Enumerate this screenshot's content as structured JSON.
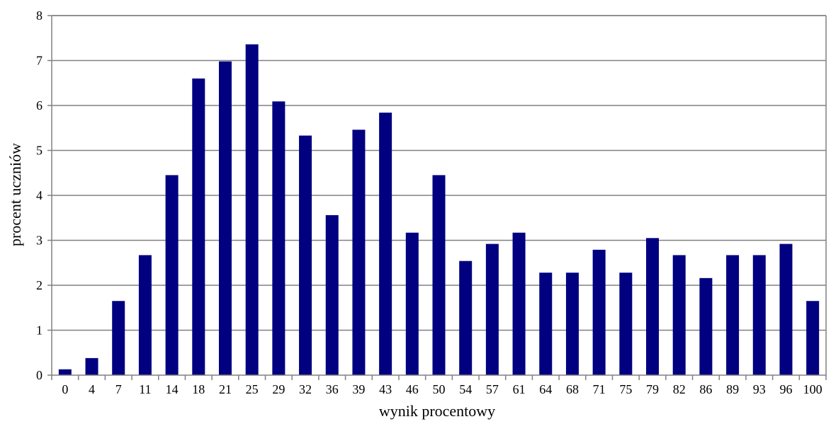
{
  "chart_data": {
    "type": "bar",
    "title": "",
    "xlabel": "wynik procentowy",
    "ylabel": "procent uczniów",
    "categories": [
      "0",
      "4",
      "7",
      "11",
      "14",
      "18",
      "21",
      "25",
      "29",
      "32",
      "36",
      "39",
      "43",
      "46",
      "50",
      "54",
      "57",
      "61",
      "64",
      "68",
      "71",
      "75",
      "79",
      "82",
      "86",
      "89",
      "93",
      "96",
      "100"
    ],
    "values": [
      0.13,
      0.38,
      1.65,
      2.67,
      4.45,
      6.6,
      6.98,
      7.36,
      6.09,
      5.33,
      3.56,
      5.46,
      5.84,
      3.17,
      4.45,
      2.54,
      2.92,
      3.17,
      2.28,
      2.28,
      2.79,
      2.28,
      3.05,
      2.67,
      2.16,
      2.67,
      2.67,
      2.92,
      1.65
    ],
    "ylim": [
      0,
      8
    ],
    "yticks": [
      "0",
      "1",
      "2",
      "3",
      "4",
      "5",
      "6",
      "7",
      "8"
    ],
    "grid": true,
    "bar_color": "#000080",
    "grid_color": "#808080",
    "legend": "none"
  }
}
